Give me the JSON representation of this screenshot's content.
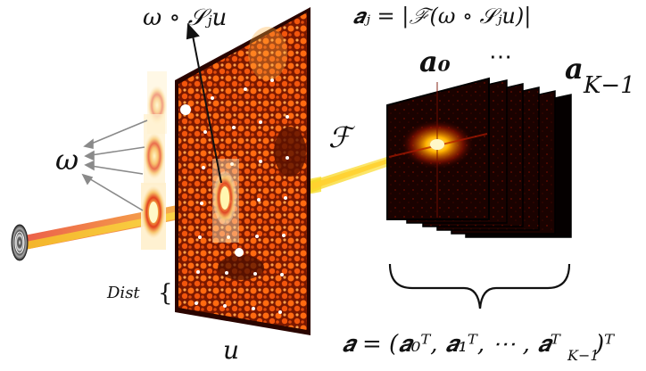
{
  "labels": {
    "mask_shift_top": "ω ∘ 𝒮ⱼu",
    "aj_formula": "𝒂ⱼ = |ℱ(ω ∘ 𝒮ⱼu)|",
    "a0": "𝒂₀",
    "dots": "⋯",
    "aK1": "𝒂",
    "aK1_sub": "K−1",
    "fourier": "ℱ",
    "omega": "ω",
    "dist": "Dist",
    "dist_brace": "{",
    "u": "u",
    "a_vector": "𝒂 = (𝒂₀ᵀ, 𝒂₁ᵀ, ⋯ , 𝒂ᵀ",
    "a_vector_sub": "K−1",
    "a_vector_end": ")ᵀ"
  },
  "colors": {
    "beam_red": "#e8412a",
    "beam_yellow": "#f7d51e",
    "sample_dark": "#5a1200",
    "sample_orange": "#ff6a10",
    "frame_dark": "#180000",
    "arrow_gray": "#8a8a8a"
  },
  "icons": {
    "source": "coherent-source-icon",
    "probe": "probe-window-icon"
  }
}
